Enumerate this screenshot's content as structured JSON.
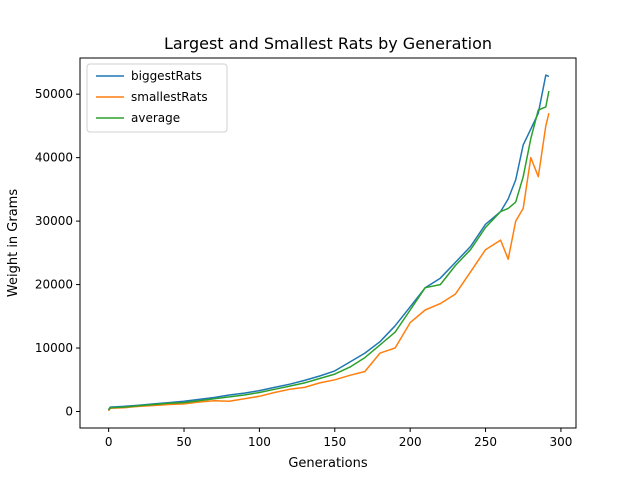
{
  "chart_data": {
    "type": "line",
    "title": "Largest and Smallest Rats by Generation",
    "xlabel": "Generations",
    "ylabel": "Weight in Grams",
    "xlim": [
      -19,
      310
    ],
    "ylim": [
      -2600,
      55700
    ],
    "xticks": [
      0,
      50,
      100,
      150,
      200,
      250,
      300
    ],
    "yticks": [
      0,
      10000,
      20000,
      30000,
      40000,
      50000
    ],
    "grid": false,
    "legend_position": "top-left",
    "series": [
      {
        "name": "biggestRats",
        "color": "#1f77b4",
        "x": [
          0,
          1,
          10,
          20,
          30,
          40,
          50,
          60,
          70,
          80,
          90,
          100,
          110,
          120,
          130,
          140,
          150,
          160,
          170,
          180,
          190,
          200,
          210,
          220,
          230,
          240,
          250,
          260,
          265,
          270,
          275,
          280,
          285,
          290,
          292
        ],
        "y": [
          300,
          700,
          800,
          1000,
          1200,
          1400,
          1600,
          1900,
          2200,
          2600,
          2900,
          3300,
          3800,
          4300,
          4900,
          5600,
          6400,
          7800,
          9200,
          11000,
          13500,
          16500,
          19500,
          21000,
          23500,
          26000,
          29500,
          31500,
          33500,
          36500,
          42000,
          44500,
          47000,
          53000,
          52800
        ]
      },
      {
        "name": "smallestRats",
        "color": "#ff7f0e",
        "x": [
          0,
          1,
          10,
          20,
          30,
          40,
          50,
          60,
          70,
          80,
          90,
          100,
          110,
          120,
          130,
          140,
          150,
          160,
          170,
          180,
          190,
          200,
          210,
          220,
          230,
          240,
          250,
          260,
          265,
          270,
          275,
          280,
          285,
          290,
          292
        ],
        "y": [
          100,
          500,
          600,
          800,
          950,
          1100,
          1200,
          1500,
          1700,
          1600,
          2000,
          2400,
          3000,
          3500,
          3800,
          4500,
          5000,
          5700,
          6300,
          9200,
          10000,
          14000,
          16000,
          17000,
          18500,
          22000,
          25500,
          27000,
          24000,
          30000,
          32000,
          40000,
          37000,
          45000,
          47000
        ]
      },
      {
        "name": "average",
        "color": "#2ca02c",
        "x": [
          0,
          1,
          10,
          20,
          30,
          40,
          50,
          60,
          70,
          80,
          90,
          100,
          110,
          120,
          130,
          140,
          150,
          160,
          170,
          180,
          190,
          200,
          210,
          220,
          230,
          240,
          250,
          260,
          265,
          270,
          275,
          280,
          285,
          290,
          292
        ],
        "y": [
          200,
          600,
          700,
          900,
          1100,
          1300,
          1400,
          1700,
          2000,
          2300,
          2600,
          3000,
          3500,
          4000,
          4500,
          5200,
          5900,
          7000,
          8500,
          10500,
          12500,
          16000,
          19500,
          20000,
          23000,
          25500,
          29000,
          31500,
          32000,
          33000,
          37000,
          43000,
          47500,
          48000,
          50500
        ]
      }
    ]
  }
}
